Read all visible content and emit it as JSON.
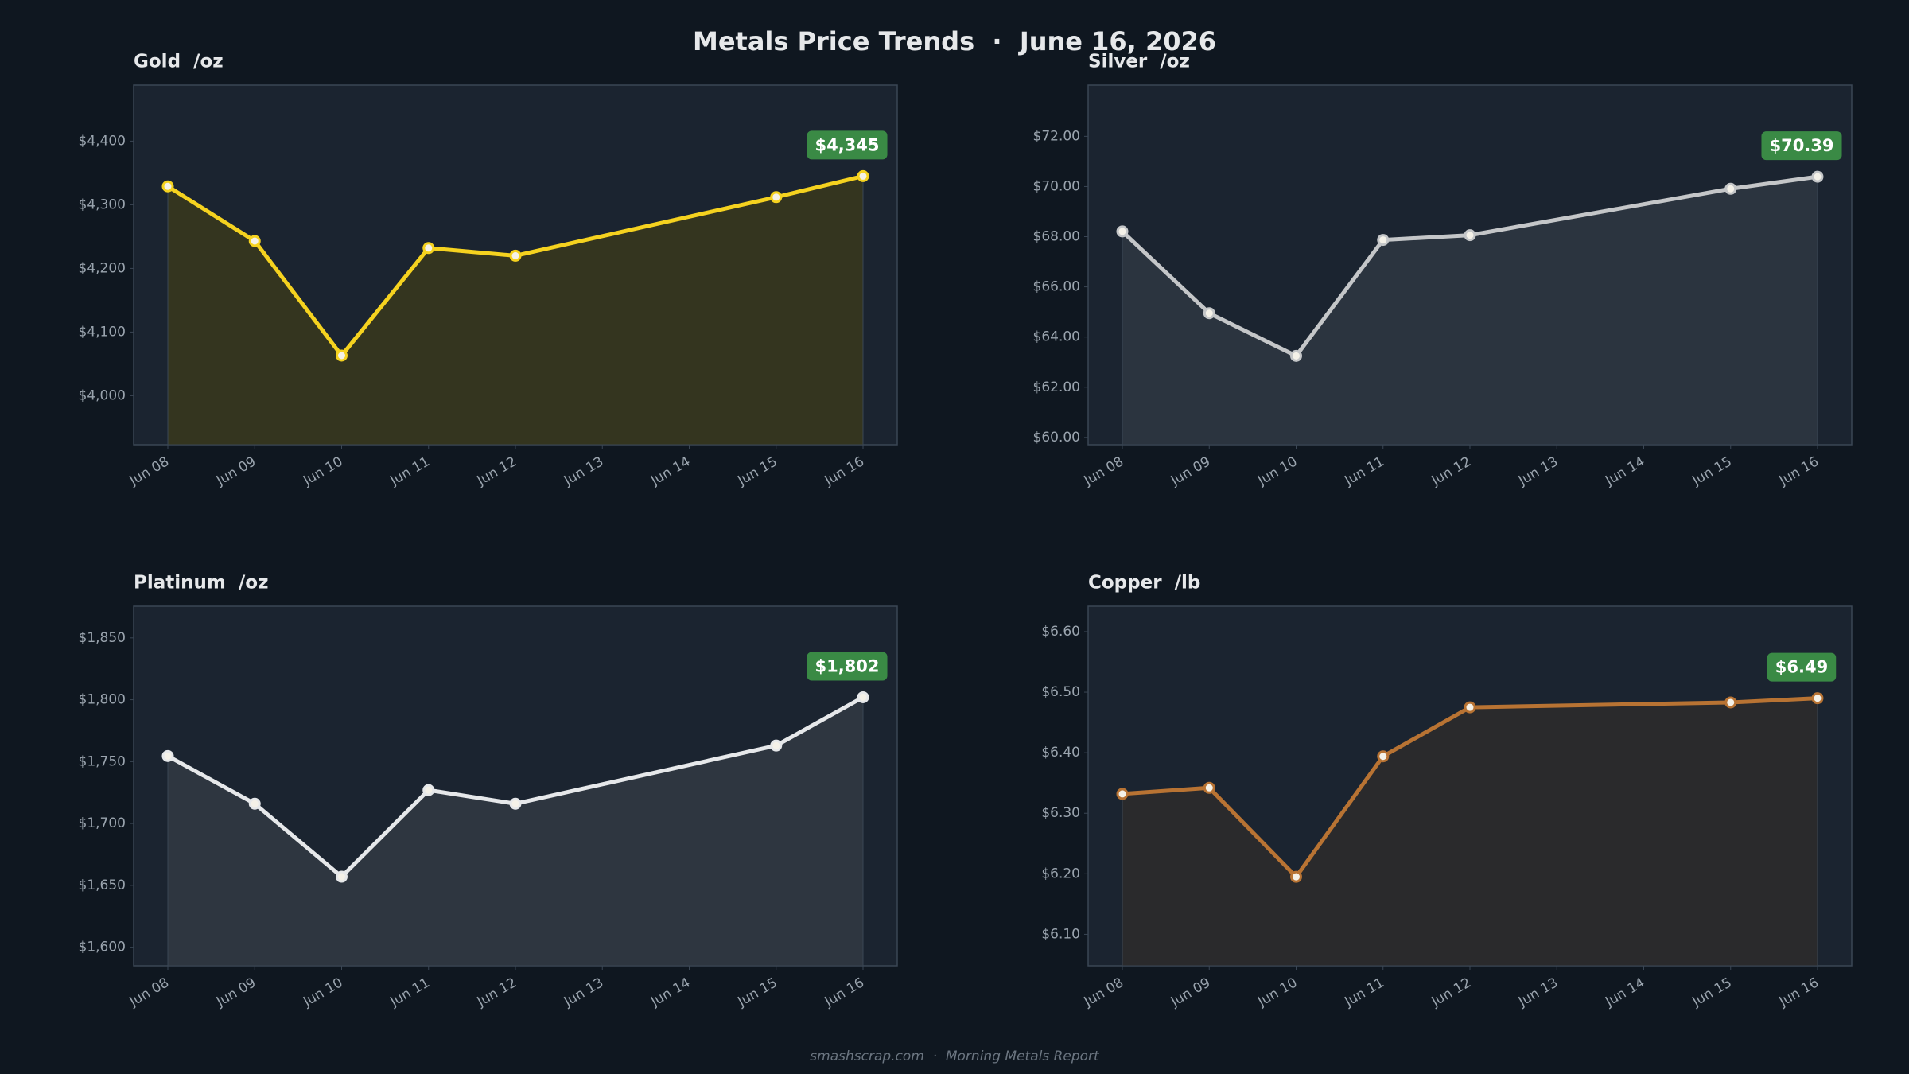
{
  "title": "Metals Price Trends  ·  June 16, 2026",
  "footer": "smashscrap.com  ·  Morning Metals Report",
  "chart_data": [
    {
      "type": "line",
      "title": "Gold  /oz",
      "xticks": [
        "Jun 08",
        "Jun 09",
        "Jun 10",
        "Jun 11",
        "Jun 12",
        "Jun 13",
        "Jun 14",
        "Jun 15",
        "Jun 16"
      ],
      "x": [
        "Jun 08",
        "Jun 09",
        "Jun 10",
        "Jun 11",
        "Jun 12",
        "Jun 15",
        "Jun 16"
      ],
      "values": [
        4329,
        4243,
        4063,
        4232,
        4220,
        4312,
        4345
      ],
      "value_labels": [
        null,
        null,
        null,
        null,
        null,
        null,
        "$4,345"
      ],
      "ylim": [
        3923,
        4488
      ],
      "yticks": [
        {
          "value": 4000,
          "label": "$4,000"
        },
        {
          "value": 4100,
          "label": "$4,100"
        },
        {
          "value": 4200,
          "label": "$4,200"
        },
        {
          "value": 4300,
          "label": "$4,300"
        },
        {
          "value": 4400,
          "label": "$4,400"
        }
      ],
      "color": "#f5d21f",
      "fill_color": "#34351f"
    },
    {
      "type": "line",
      "title": "Silver  /oz",
      "xticks": [
        "Jun 08",
        "Jun 09",
        "Jun 10",
        "Jun 11",
        "Jun 12",
        "Jun 13",
        "Jun 14",
        "Jun 15",
        "Jun 16"
      ],
      "x": [
        "Jun 08",
        "Jun 09",
        "Jun 10",
        "Jun 11",
        "Jun 12",
        "Jun 15",
        "Jun 16"
      ],
      "values": [
        68.21,
        64.95,
        63.25,
        67.87,
        68.06,
        69.91,
        70.39
      ],
      "value_labels": [
        null,
        null,
        null,
        null,
        null,
        null,
        "$70.39"
      ],
      "ylim": [
        59.71,
        74.04
      ],
      "yticks": [
        {
          "value": 60,
          "label": "$60.00"
        },
        {
          "value": 62,
          "label": "$62.00"
        },
        {
          "value": 64,
          "label": "$64.00"
        },
        {
          "value": 66,
          "label": "$66.00"
        },
        {
          "value": 68,
          "label": "$68.00"
        },
        {
          "value": 70,
          "label": "$70.00"
        },
        {
          "value": 72,
          "label": "$72.00"
        }
      ],
      "color": "#c4c6c8",
      "fill_color": "#2b343f"
    },
    {
      "type": "line",
      "title": "Platinum  /oz",
      "xticks": [
        "Jun 08",
        "Jun 09",
        "Jun 10",
        "Jun 11",
        "Jun 12",
        "Jun 13",
        "Jun 14",
        "Jun 15",
        "Jun 16"
      ],
      "x": [
        "Jun 08",
        "Jun 09",
        "Jun 10",
        "Jun 11",
        "Jun 12",
        "Jun 15",
        "Jun 16"
      ],
      "values": [
        1754.5,
        1716,
        1657,
        1727,
        1716,
        1763,
        1802
      ],
      "value_labels": [
        null,
        null,
        null,
        null,
        null,
        null,
        "$1,802"
      ],
      "ylim": [
        1585,
        1875.6
      ],
      "yticks": [
        {
          "value": 1600,
          "label": "$1,600"
        },
        {
          "value": 1650,
          "label": "$1,650"
        },
        {
          "value": 1700,
          "label": "$1,700"
        },
        {
          "value": 1750,
          "label": "$1,750"
        },
        {
          "value": 1800,
          "label": "$1,800"
        },
        {
          "value": 1850,
          "label": "$1,850"
        }
      ],
      "color": "#e6e8ea",
      "fill_color": "#2e3640"
    },
    {
      "type": "line",
      "title": "Copper  /lb",
      "xticks": [
        "Jun 08",
        "Jun 09",
        "Jun 10",
        "Jun 11",
        "Jun 12",
        "Jun 13",
        "Jun 14",
        "Jun 15",
        "Jun 16"
      ],
      "x": [
        "Jun 08",
        "Jun 09",
        "Jun 10",
        "Jun 11",
        "Jun 12",
        "Jun 15",
        "Jun 16"
      ],
      "values": [
        6.332,
        6.342,
        6.195,
        6.394,
        6.475,
        6.483,
        6.49
      ],
      "value_labels": [
        null,
        null,
        null,
        null,
        null,
        null,
        "$6.49"
      ],
      "ylim": [
        6.048,
        6.642
      ],
      "yticks": [
        {
          "value": 6.1,
          "label": "$6.10"
        },
        {
          "value": 6.2,
          "label": "$6.20"
        },
        {
          "value": 6.3,
          "label": "$6.30"
        },
        {
          "value": 6.4,
          "label": "$6.40"
        },
        {
          "value": 6.5,
          "label": "$6.50"
        },
        {
          "value": 6.6,
          "label": "$6.60"
        }
      ],
      "color": "#b87333",
      "fill_color": "#2a2a2c"
    }
  ]
}
